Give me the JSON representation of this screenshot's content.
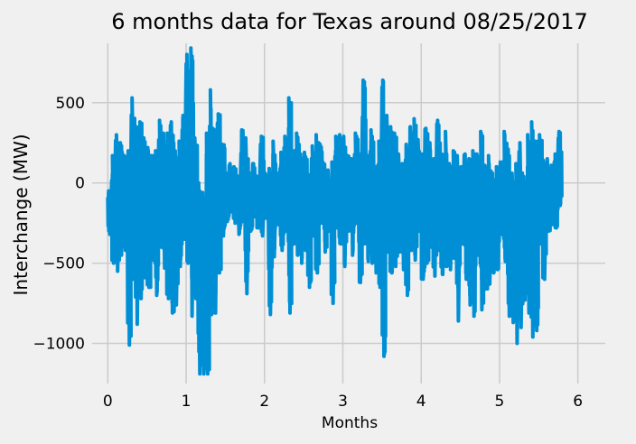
{
  "chart_data": {
    "type": "line",
    "title": "6 months data for Texas around 08/25/2017",
    "xlabel": "Months",
    "ylabel": "Interchange (MW)",
    "xlim": [
      -0.2,
      6.35
    ],
    "ylim": [
      -1250,
      870
    ],
    "x_ticks": [
      0,
      1,
      2,
      3,
      4,
      5,
      6
    ],
    "x_tick_labels": [
      "0",
      "1",
      "2",
      "3",
      "4",
      "5",
      "6"
    ],
    "y_ticks": [
      -1000,
      -500,
      0,
      500
    ],
    "y_tick_labels": [
      "−1000",
      "−500",
      "0",
      "500"
    ],
    "grid": true,
    "style": "fivethirtyeight",
    "colors": {
      "series": "#008fd5",
      "background": "#f0f0f0",
      "grid": "#cbcbcb"
    },
    "series": [
      {
        "color": "#008fd5",
        "x": [
          0.0,
          0.05,
          0.1,
          0.15,
          0.2,
          0.25,
          0.3,
          0.35,
          0.4,
          0.45,
          0.5,
          0.55,
          0.6,
          0.65,
          0.7,
          0.75,
          0.8,
          0.85,
          0.9,
          0.95,
          1.0,
          1.05,
          1.1,
          1.15,
          1.2,
          1.25,
          1.3,
          1.35,
          1.4,
          1.45,
          1.5,
          1.55,
          1.6,
          1.65,
          1.7,
          1.75,
          1.8,
          1.85,
          1.9,
          1.95,
          2.0,
          2.05,
          2.1,
          2.15,
          2.2,
          2.25,
          2.3,
          2.35,
          2.4,
          2.45,
          2.5,
          2.55,
          2.6,
          2.65,
          2.7,
          2.75,
          2.8,
          2.85,
          2.9,
          2.95,
          3.0,
          3.05,
          3.1,
          3.15,
          3.2,
          3.25,
          3.3,
          3.35,
          3.4,
          3.45,
          3.5,
          3.55,
          3.6,
          3.65,
          3.7,
          3.75,
          3.8,
          3.85,
          3.9,
          3.95,
          4.0,
          4.05,
          4.1,
          4.15,
          4.2,
          4.25,
          4.3,
          4.35,
          4.4,
          4.45,
          4.5,
          4.55,
          4.6,
          4.65,
          4.7,
          4.75,
          4.8,
          4.85,
          4.9,
          4.95,
          5.0,
          5.05,
          5.1,
          5.15,
          5.2,
          5.25,
          5.3,
          5.35,
          5.4,
          5.45,
          5.5,
          5.55,
          5.6,
          5.65,
          5.7,
          5.75,
          5.8,
          5.85,
          5.9,
          5.95,
          6.0,
          6.05
        ],
        "lows": [
          -320,
          -500,
          -550,
          -450,
          -420,
          -1010,
          -600,
          -880,
          -720,
          -590,
          -650,
          -480,
          -700,
          -400,
          -530,
          -720,
          -810,
          -760,
          -520,
          -350,
          -500,
          -830,
          -720,
          -1190,
          -1190,
          -1190,
          -820,
          -810,
          -560,
          -330,
          -240,
          -180,
          -250,
          -320,
          -240,
          -690,
          -300,
          -210,
          -280,
          -330,
          -220,
          -820,
          -460,
          -260,
          -420,
          -300,
          -810,
          -380,
          -450,
          -500,
          -420,
          -650,
          -330,
          -560,
          -250,
          -430,
          -300,
          -750,
          -280,
          -380,
          -520,
          -300,
          -450,
          -250,
          -620,
          -380,
          -490,
          -500,
          -560,
          -650,
          -1080,
          -430,
          -560,
          -520,
          -430,
          -540,
          -700,
          -420,
          -480,
          -300,
          -600,
          -500,
          -400,
          -580,
          -420,
          -570,
          -520,
          -540,
          -470,
          -860,
          -380,
          -600,
          -760,
          -830,
          -450,
          -790,
          -660,
          -630,
          -560,
          -540,
          -320,
          -490,
          -830,
          -870,
          -1000,
          -900,
          -730,
          -810,
          -960,
          -920,
          -380,
          -600,
          -300,
          -260,
          -280,
          -140
        ],
        "highs": [
          -50,
          170,
          300,
          250,
          170,
          200,
          530,
          350,
          380,
          280,
          220,
          170,
          200,
          390,
          310,
          310,
          380,
          200,
          260,
          420,
          800,
          840,
          280,
          0,
          -60,
          310,
          580,
          330,
          430,
          240,
          60,
          120,
          100,
          40,
          330,
          280,
          60,
          120,
          40,
          290,
          60,
          90,
          260,
          60,
          190,
          290,
          530,
          200,
          310,
          180,
          190,
          50,
          230,
          300,
          240,
          120,
          80,
          130,
          290,
          300,
          290,
          170,
          150,
          310,
          180,
          640,
          170,
          330,
          100,
          260,
          640,
          420,
          350,
          310,
          180,
          120,
          240,
          350,
          400,
          270,
          180,
          340,
          250,
          150,
          390,
          180,
          320,
          120,
          200,
          170,
          100,
          180,
          150,
          200,
          180,
          320,
          110,
          170,
          60,
          100,
          130,
          320,
          210,
          60,
          120,
          250,
          40,
          300,
          380,
          260,
          300,
          140,
          150,
          110,
          180,
          320
        ]
      }
    ]
  }
}
